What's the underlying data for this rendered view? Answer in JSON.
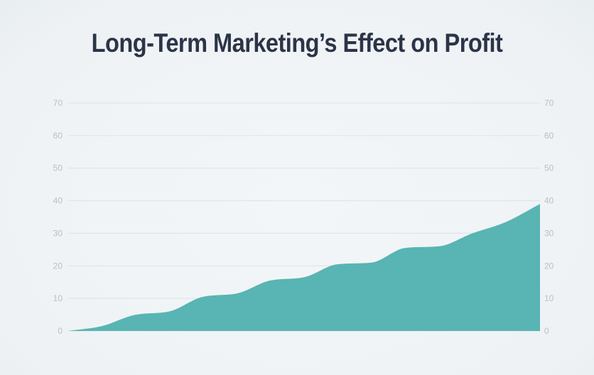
{
  "chart_data": {
    "type": "area",
    "title": "Long-Term Marketing’s Effect on Profit",
    "xlabel": "",
    "ylabel": "",
    "ylim": [
      0,
      70
    ],
    "yticks": [
      "0",
      "10",
      "20",
      "30",
      "40",
      "50",
      "60",
      "70"
    ],
    "grid": true,
    "legend": "none",
    "series": [
      {
        "color": "#58b5b3",
        "x": [
          0,
          1,
          2,
          3,
          4,
          5,
          6,
          7,
          8,
          9,
          10,
          11,
          12,
          13,
          14
        ],
        "values": [
          0,
          1.5,
          5,
          6,
          10.5,
          11.5,
          15.5,
          16.5,
          20.5,
          21,
          25.5,
          26,
          30,
          33.5,
          39
        ]
      }
    ]
  }
}
